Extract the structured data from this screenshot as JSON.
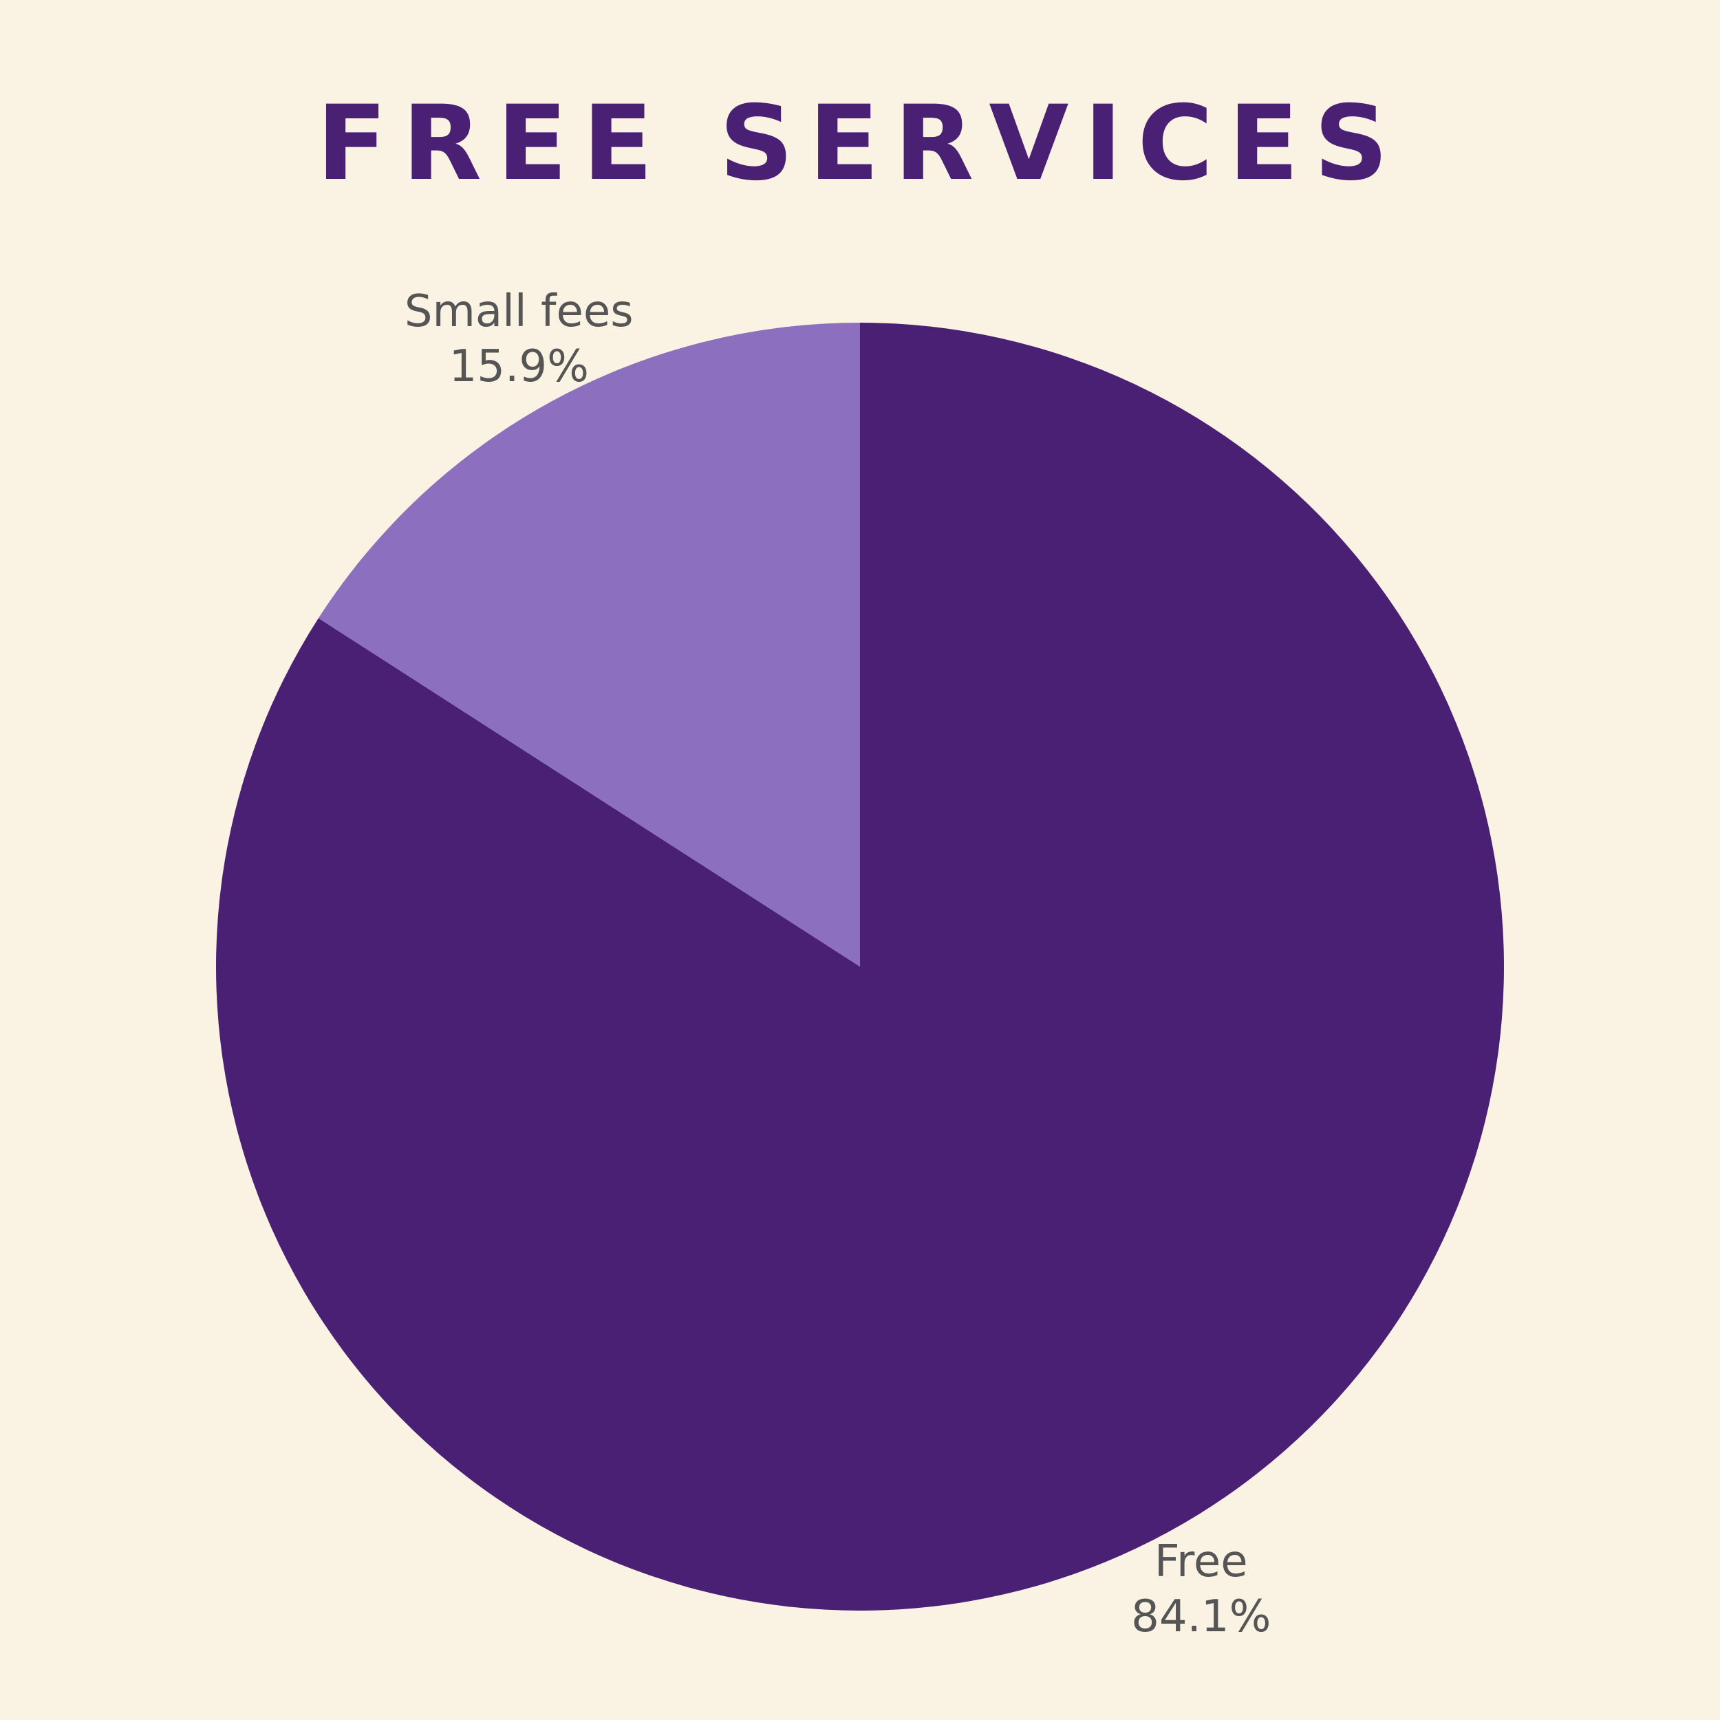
{
  "chart_data": {
    "type": "pie",
    "title": "FREE SERVICES",
    "categories": [
      "Free",
      "Small fees"
    ],
    "values": [
      84.1,
      15.9
    ],
    "value_labels": [
      "84.1%",
      "15.9%"
    ],
    "colors": [
      "#4a2075",
      "#8c6fbf"
    ]
  }
}
